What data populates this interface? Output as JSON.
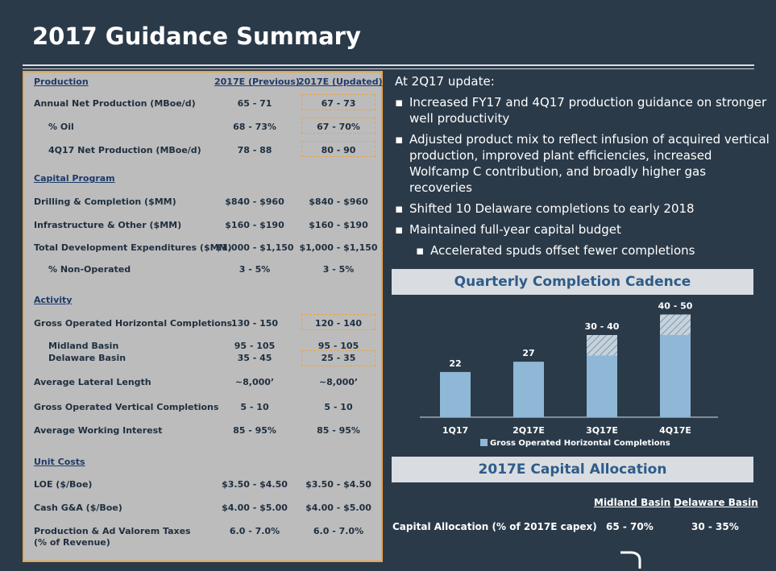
{
  "title": "2017 Guidance Summary",
  "table": {
    "col1_header": "2017E (Previous)",
    "col2_header": "2017E (Updated)",
    "sections": {
      "production": "Production",
      "capital": "Capital Program",
      "activity": "Activity",
      "unit_costs": "Unit Costs"
    },
    "rows": [
      {
        "label": "Annual Net Production (MBoe/d)",
        "prev": "65 - 71",
        "upd": "67 - 73"
      },
      {
        "label": "% Oil",
        "prev": "68 - 73%",
        "upd": "67 - 70%"
      },
      {
        "label": "4Q17 Net Production (MBoe/d)",
        "prev": "78 - 88",
        "upd": "80 - 90"
      },
      {
        "label": "Drilling & Completion ($MM)",
        "prev": "$840 - $960",
        "upd": "$840 - $960"
      },
      {
        "label": "Infrastructure & Other ($MM)",
        "prev": "$160 - $190",
        "upd": "$160 - $190"
      },
      {
        "label": "Total Development Expenditures ($MM)",
        "prev": "$1,000 - $1,150",
        "upd": "$1,000 - $1,150"
      },
      {
        "label": "% Non-Operated",
        "prev": "3 - 5%",
        "upd": "3 - 5%"
      },
      {
        "label": "Gross Operated Horizontal Completions",
        "prev": "130 - 150",
        "upd": "120 - 140"
      },
      {
        "label": "Midland Basin",
        "prev": "95 - 105",
        "upd": "95 - 105"
      },
      {
        "label": "Delaware Basin",
        "prev": "35 - 45",
        "upd": "25 - 35"
      },
      {
        "label": "Average Lateral Length",
        "prev": "~8,000’",
        "upd": "~8,000’"
      },
      {
        "label": "Gross Operated Vertical Completions",
        "prev": "5 - 10",
        "upd": "5 - 10"
      },
      {
        "label": "Average Working Interest",
        "prev": "85 - 95%",
        "upd": "85 - 95%"
      },
      {
        "label": "LOE ($/Boe)",
        "prev": "$3.50 - $4.50",
        "upd": "$3.50 - $4.50"
      },
      {
        "label": "Cash G&A ($/Boe)",
        "prev": "$4.00 - $5.00",
        "upd": "$4.00 - $5.00"
      },
      {
        "label": "Production & Ad Valorem Taxes",
        "label2": "(% of Revenue)",
        "prev": "6.0 - 7.0%",
        "upd": "6.0 - 7.0%"
      }
    ]
  },
  "update": {
    "heading": "At 2Q17 update:",
    "bullets": [
      "Increased FY17 and 4Q17 production guidance on stronger well productivity",
      "Adjusted product mix to reflect infusion of acquired vertical production, improved plant efficiencies, increased Wolfcamp C contribution, and broadly higher gas recoveries",
      "Shifted 10 Delaware completions to early 2018",
      "Maintained full-year capital budget"
    ],
    "sub_bullet": "Accelerated spuds offset fewer completions"
  },
  "chart_header": "Quarterly Completion Cadence",
  "chart_data": {
    "type": "bar",
    "categories": [
      "1Q17",
      "2Q17E",
      "3Q17E",
      "4Q17E"
    ],
    "series": [
      {
        "name": "Gross Operated Horizontal Completions",
        "values": [
          22,
          27,
          30,
          40
        ]
      }
    ],
    "range_tops": [
      22,
      27,
      40,
      50
    ],
    "labels": [
      "22",
      "27",
      "30 - 40",
      "40 - 50"
    ],
    "colors": {
      "bar": "#8fb8d6",
      "hatch": "#c5d2dc"
    }
  },
  "cap_header": "2017E Capital Allocation",
  "capital": {
    "col1": "Midland Basin",
    "col2": "Delaware Basin",
    "row_label": "Capital Allocation (% of 2017E capex)",
    "v1": "65 - 70%",
    "v2": "30 - 35%"
  }
}
